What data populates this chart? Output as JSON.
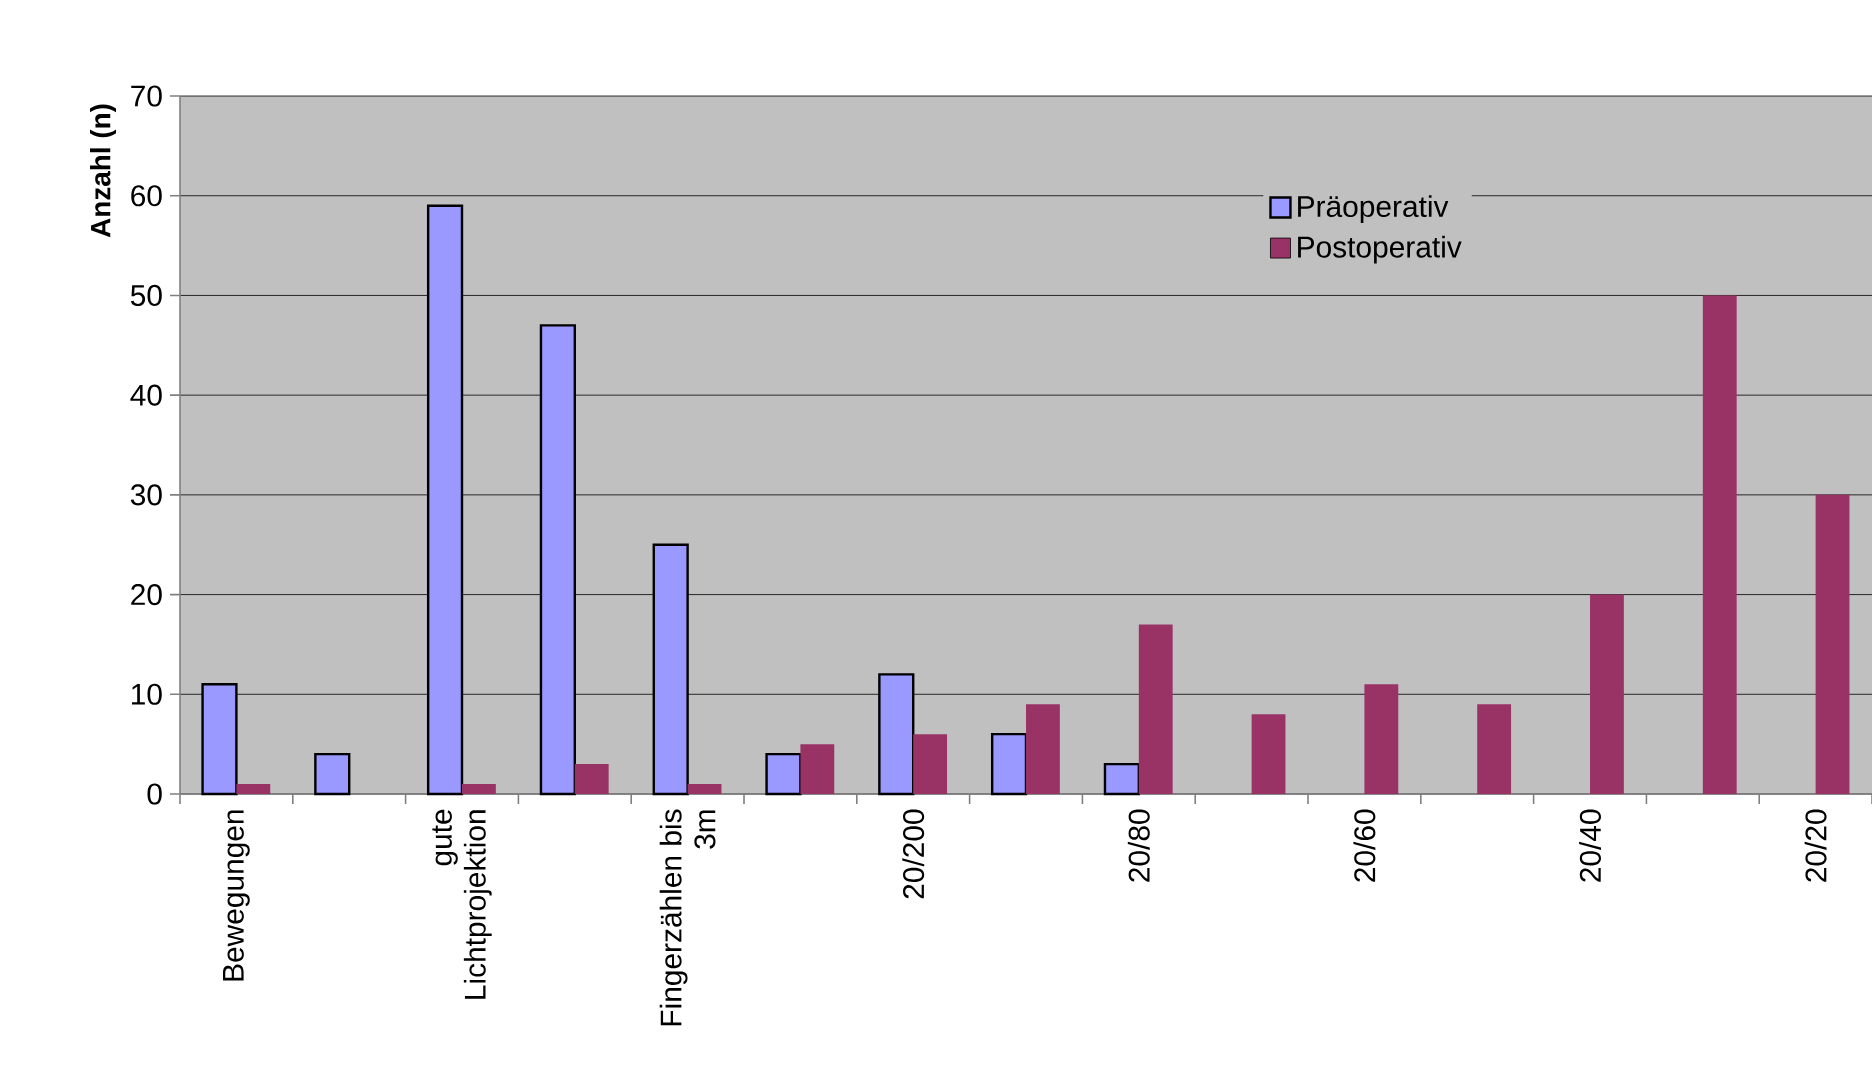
{
  "chart_data": {
    "type": "bar",
    "ylabel": "Anzahl (n)",
    "categories": [
      "Bewegungen",
      null,
      "gute Lichtprojektion",
      null,
      "Fingerzählen bis 3m",
      null,
      "20/200",
      null,
      "20/80",
      null,
      "20/60",
      null,
      "20/40",
      null,
      "20/20"
    ],
    "series": [
      {
        "name": "Präoperativ",
        "color": "#9999ff",
        "values": [
          11,
          4,
          59,
          47,
          25,
          4,
          12,
          6,
          3,
          null,
          null,
          null,
          null,
          null,
          null
        ]
      },
      {
        "name": "Postoperativ",
        "color": "#993366",
        "values": [
          1,
          null,
          1,
          3,
          1,
          5,
          6,
          9,
          17,
          8,
          11,
          9,
          20,
          50,
          30
        ]
      }
    ],
    "ylim": [
      0,
      70
    ],
    "yticks": [
      0,
      10,
      20,
      30,
      40,
      50,
      60,
      70
    ],
    "grid": "y",
    "legend": "top right"
  }
}
